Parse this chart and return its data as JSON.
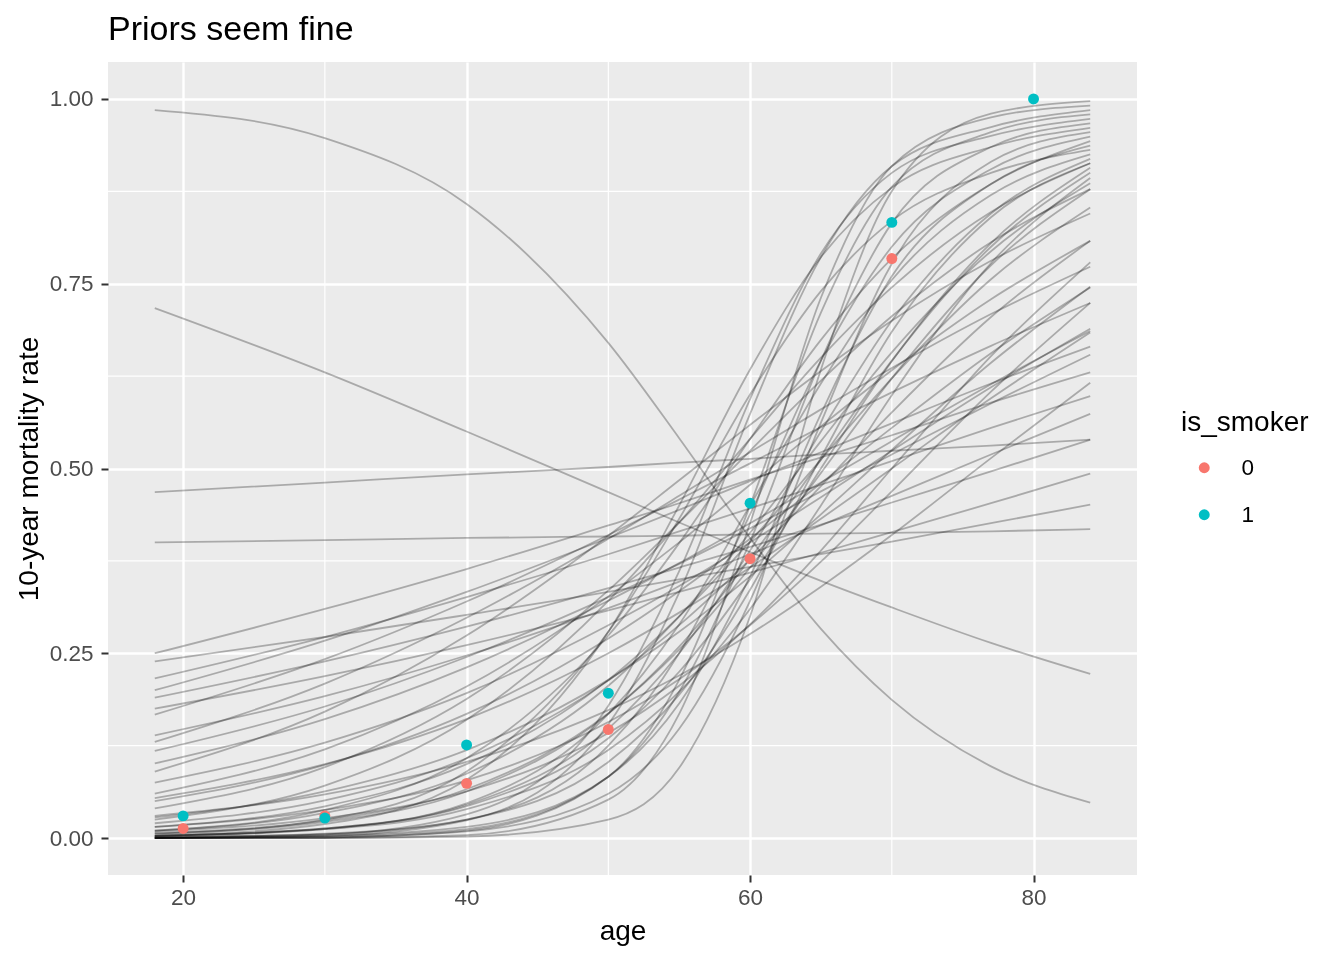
{
  "chart_data": {
    "type": "line",
    "title": "Priors seem fine",
    "xlabel": "age",
    "ylabel": "10-year mortality rate",
    "legend_title": "is_smoker",
    "legend": "right",
    "grid": true,
    "x": [
      18,
      30,
      40,
      50,
      55,
      60,
      65,
      70,
      77,
      84
    ],
    "xlim": [
      14.7,
      87.3
    ],
    "ylim": [
      -0.05,
      1.05
    ],
    "xticks": [
      20,
      40,
      60,
      80
    ],
    "yticks": [
      {
        "value": 0,
        "label": "0.00"
      },
      {
        "value": 0.25,
        "label": "0.25"
      },
      {
        "value": 0.5,
        "label": "0.50"
      },
      {
        "value": 0.75,
        "label": "0.75"
      },
      {
        "value": 1,
        "label": "1.00"
      }
    ],
    "series": [
      {
        "color": "#000000",
        "values": [
          0.985,
          0.947,
          0.858,
          0.67,
          0.541,
          0.406,
          0.283,
          0.187,
          0.097,
          0.048
        ]
      },
      {
        "color": "#000000",
        "values": [
          0.717,
          0.63,
          0.55,
          0.468,
          0.427,
          0.387,
          0.348,
          0.312,
          0.264,
          0.222
        ]
      },
      {
        "color": "#000000",
        "values": [
          0.468,
          0.481,
          0.492,
          0.502,
          0.508,
          0.513,
          0.519,
          0.524,
          0.531,
          0.539
        ]
      },
      {
        "color": "#000000",
        "values": [
          0.4,
          0.403,
          0.406,
          0.408,
          0.409,
          0.411,
          0.412,
          0.413,
          0.415,
          0.418
        ]
      },
      {
        "color": "#000000",
        "values": [
          0.25,
          0.31,
          0.364,
          0.423,
          0.453,
          0.485,
          0.515,
          0.545,
          0.589,
          0.63
        ]
      },
      {
        "color": "#000000",
        "values": [
          0.239,
          0.272,
          0.302,
          0.333,
          0.35,
          0.367,
          0.384,
          0.401,
          0.426,
          0.451
        ]
      },
      {
        "color": "#000000",
        "values": [
          0.216,
          0.272,
          0.326,
          0.384,
          0.415,
          0.446,
          0.478,
          0.51,
          0.555,
          0.598
        ]
      },
      {
        "color": "#000000",
        "values": [
          0.2,
          0.267,
          0.333,
          0.406,
          0.444,
          0.483,
          0.522,
          0.561,
          0.615,
          0.665
        ]
      },
      {
        "color": "#000000",
        "values": [
          0.19,
          0.239,
          0.286,
          0.338,
          0.366,
          0.394,
          0.424,
          0.454,
          0.496,
          0.539
        ]
      },
      {
        "color": "#000000",
        "values": [
          0.175,
          0.219,
          0.261,
          0.308,
          0.333,
          0.359,
          0.386,
          0.414,
          0.453,
          0.493
        ]
      },
      {
        "color": "#000000",
        "values": [
          0.167,
          0.242,
          0.32,
          0.41,
          0.458,
          0.507,
          0.556,
          0.603,
          0.666,
          0.724
        ]
      },
      {
        "color": "#000000",
        "values": [
          0.139,
          0.192,
          0.247,
          0.311,
          0.347,
          0.384,
          0.423,
          0.463,
          0.519,
          0.574
        ]
      },
      {
        "color": "#000000",
        "values": [
          0.13,
          0.209,
          0.298,
          0.405,
          0.463,
          0.522,
          0.58,
          0.636,
          0.709,
          0.773
        ]
      },
      {
        "color": "#000000",
        "values": [
          0.118,
          0.178,
          0.245,
          0.326,
          0.371,
          0.419,
          0.469,
          0.519,
          0.588,
          0.654
        ]
      },
      {
        "color": "#000000",
        "values": [
          0.09,
          0.171,
          0.274,
          0.409,
          0.484,
          0.559,
          0.632,
          0.7,
          0.781,
          0.845
        ]
      },
      {
        "color": "#000000",
        "values": [
          0.075,
          0.129,
          0.196,
          0.288,
          0.341,
          0.4,
          0.461,
          0.524,
          0.61,
          0.689
        ]
      },
      {
        "color": "#000000",
        "values": [
          0.06,
          0.12,
          0.205,
          0.327,
          0.4,
          0.478,
          0.557,
          0.633,
          0.729,
          0.808
        ]
      },
      {
        "color": "#000000",
        "values": [
          0.05,
          0.099,
          0.168,
          0.27,
          0.334,
          0.405,
          0.48,
          0.555,
          0.656,
          0.745
        ]
      },
      {
        "color": "#000000",
        "values": [
          0.04,
          0.096,
          0.188,
          0.335,
          0.427,
          0.524,
          0.619,
          0.706,
          0.806,
          0.878
        ]
      },
      {
        "color": "#000000",
        "values": [
          0.03,
          0.059,
          0.103,
          0.173,
          0.22,
          0.276,
          0.34,
          0.41,
          0.514,
          0.616
        ]
      },
      {
        "color": "#000000",
        "values": [
          0.025,
          0.071,
          0.16,
          0.321,
          0.427,
          0.54,
          0.65,
          0.745,
          0.847,
          0.913
        ]
      },
      {
        "color": "#000000",
        "values": [
          0.02,
          0.051,
          0.108,
          0.213,
          0.288,
          0.377,
          0.476,
          0.576,
          0.705,
          0.808
        ]
      },
      {
        "color": "#000000",
        "values": [
          0.015,
          0.038,
          0.078,
          0.157,
          0.215,
          0.288,
          0.374,
          0.469,
          0.604,
          0.724
        ]
      },
      {
        "color": "#000000",
        "values": [
          0.054,
          0.1,
          0.161,
          0.25,
          0.305,
          0.366,
          0.432,
          0.5,
          0.595,
          0.684
        ]
      },
      {
        "color": "#000000",
        "values": [
          0.101,
          0.161,
          0.231,
          0.321,
          0.372,
          0.426,
          0.481,
          0.537,
          0.614,
          0.686
        ]
      },
      {
        "color": "#000000",
        "values": [
          0,
          0,
          0.002,
          0.025,
          0.095,
          0.3,
          0.634,
          0.875,
          0.98,
          0.997
        ]
      },
      {
        "color": "#000000",
        "values": [
          0,
          0,
          0.004,
          0.052,
          0.168,
          0.426,
          0.731,
          0.909,
          0.975,
          0.991
        ]
      },
      {
        "color": "#000000",
        "values": [
          0,
          0.003,
          0.024,
          0.154,
          0.332,
          0.574,
          0.786,
          0.909,
          0.962,
          0.985
        ]
      },
      {
        "color": "#000000",
        "values": [
          0,
          0.001,
          0.01,
          0.083,
          0.214,
          0.45,
          0.711,
          0.881,
          0.955,
          0.979
        ]
      },
      {
        "color": "#000000",
        "values": [
          0.001,
          0.005,
          0.032,
          0.179,
          0.361,
          0.594,
          0.791,
          0.9,
          0.95,
          0.973
        ]
      },
      {
        "color": "#000000",
        "values": [
          0,
          0.002,
          0.012,
          0.083,
          0.198,
          0.401,
          0.646,
          0.832,
          0.935,
          0.967
        ]
      },
      {
        "color": "#000000",
        "values": [
          0.003,
          0.019,
          0.079,
          0.279,
          0.45,
          0.634,
          0.786,
          0.88,
          0.935,
          0.961
        ]
      },
      {
        "color": "#000000",
        "values": [
          0,
          0.001,
          0.009,
          0.06,
          0.148,
          0.321,
          0.562,
          0.777,
          0.915,
          0.955
        ]
      },
      {
        "color": "#000000",
        "values": [
          0.001,
          0.005,
          0.025,
          0.125,
          0.25,
          0.438,
          0.646,
          0.8,
          0.905,
          0.949
        ]
      },
      {
        "color": "#000000",
        "values": [
          0.01,
          0.038,
          0.108,
          0.274,
          0.399,
          0.54,
          0.674,
          0.784,
          0.885,
          0.943
        ]
      },
      {
        "color": "#000000",
        "values": [
          0,
          0.003,
          0.015,
          0.083,
          0.182,
          0.354,
          0.574,
          0.76,
          0.885,
          0.937
        ]
      },
      {
        "color": "#000000",
        "values": [
          0.005,
          0.025,
          0.09,
          0.279,
          0.432,
          0.6,
          0.74,
          0.835,
          0.9,
          0.931
        ]
      },
      {
        "color": "#000000",
        "values": [
          0.002,
          0.012,
          0.047,
          0.168,
          0.289,
          0.45,
          0.615,
          0.755,
          0.87,
          0.925
        ]
      },
      {
        "color": "#000000",
        "values": [
          0.003,
          0.013,
          0.045,
          0.148,
          0.25,
          0.389,
          0.55,
          0.7,
          0.845,
          0.919
        ]
      },
      {
        "color": "#000000",
        "values": [
          0.001,
          0.006,
          0.025,
          0.103,
          0.194,
          0.336,
          0.515,
          0.685,
          0.84,
          0.913
        ]
      },
      {
        "color": "#000000",
        "values": [
          0.003,
          0.013,
          0.043,
          0.135,
          0.225,
          0.35,
          0.5,
          0.645,
          0.805,
          0.907
        ]
      },
      {
        "color": "#000000",
        "values": [
          0.006,
          0.022,
          0.063,
          0.168,
          0.259,
          0.378,
          0.512,
          0.646,
          0.8,
          0.9
        ]
      },
      {
        "color": "#000000",
        "values": [
          0.003,
          0.012,
          0.039,
          0.119,
          0.198,
          0.31,
          0.45,
          0.599,
          0.778,
          0.893
        ]
      },
      {
        "color": "#000000",
        "values": [
          0.01,
          0.034,
          0.087,
          0.206,
          0.3,
          0.413,
          0.537,
          0.657,
          0.794,
          0.886
        ]
      },
      {
        "color": "#000000",
        "values": [
          0.007,
          0.024,
          0.066,
          0.169,
          0.255,
          0.366,
          0.494,
          0.622,
          0.775,
          0.878
        ]
      },
      {
        "color": "#000000",
        "values": [
          0.009,
          0.027,
          0.063,
          0.142,
          0.206,
          0.289,
          0.389,
          0.5,
          0.652,
          0.779
        ]
      },
      {
        "color": "#000000",
        "values": [
          0.015,
          0.043,
          0.1,
          0.214,
          0.3,
          0.401,
          0.512,
          0.622,
          0.756,
          0.853
        ]
      },
      {
        "color": "#000000",
        "values": [
          0.028,
          0.063,
          0.119,
          0.214,
          0.279,
          0.354,
          0.438,
          0.525,
          0.643,
          0.746
        ]
      },
      {
        "type": "scatter",
        "name": "0",
        "color": "#f8766d",
        "x": [
          20,
          30,
          40,
          50,
          60,
          70
        ],
        "values": [
          0.013,
          0.03,
          0.074,
          0.147,
          0.378,
          0.784
        ]
      },
      {
        "type": "scatter",
        "name": "1",
        "color": "#00bfc4",
        "x": [
          20,
          30,
          40,
          50,
          60,
          70,
          80
        ],
        "values": [
          0.03,
          0.027,
          0.126,
          0.196,
          0.453,
          0.833,
          1.0
        ]
      }
    ]
  }
}
